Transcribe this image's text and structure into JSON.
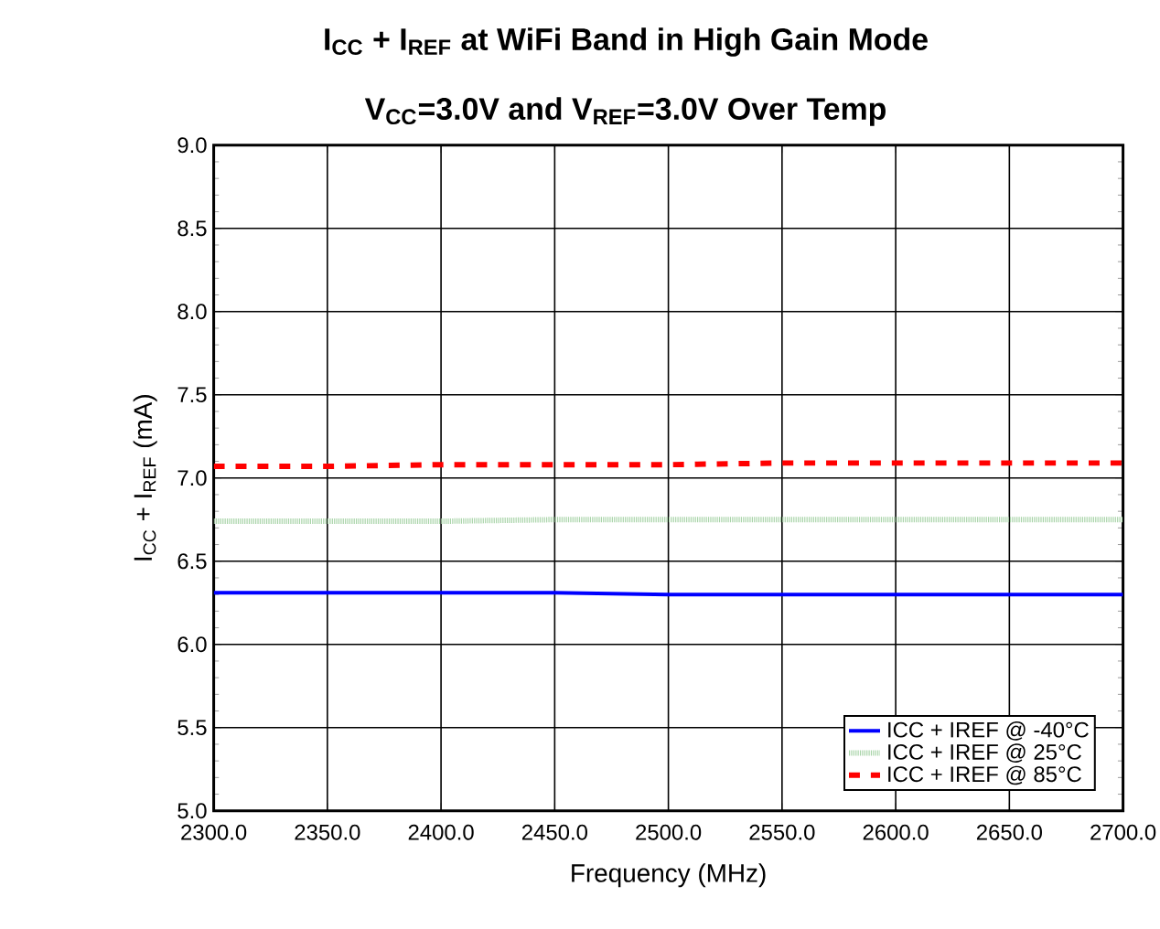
{
  "chart_data": {
    "type": "line",
    "title": "I$_{CC}$ + I$_{REF}$ at WiFi Band in High Gain Mode",
    "subtitle": "V$_{CC}$=3.0V and V$_{REF}$=3.0V Over Temp",
    "xlabel": "Frequency (MHz)",
    "ylabel": "I$_{CC}$ + I$_{REF}$ (mA)",
    "x": [
      2300,
      2350,
      2400,
      2450,
      2500,
      2550,
      2600,
      2650,
      2700
    ],
    "series": [
      {
        "name": "ICC + IREF @ -40°C",
        "color": "#0000ff",
        "line_style": "solid",
        "values": [
          6.31,
          6.31,
          6.31,
          6.31,
          6.3,
          6.3,
          6.3,
          6.3,
          6.3
        ]
      },
      {
        "name": "ICC + IREF @ 25°C",
        "color": "#a9d4a9",
        "line_style": "dotted",
        "values": [
          6.74,
          6.74,
          6.74,
          6.75,
          6.75,
          6.75,
          6.75,
          6.75,
          6.75
        ]
      },
      {
        "name": "ICC + IREF @ 85°C",
        "color": "#ff0000",
        "line_style": "dashed",
        "values": [
          7.07,
          7.07,
          7.08,
          7.08,
          7.08,
          7.09,
          7.09,
          7.09,
          7.09
        ]
      }
    ],
    "xlim": [
      2300,
      2700
    ],
    "ylim": [
      5.0,
      9.0
    ],
    "xticks": [
      {
        "value": 2300,
        "label": "2300.0"
      },
      {
        "value": 2350,
        "label": "2350.0"
      },
      {
        "value": 2400,
        "label": "2400.0"
      },
      {
        "value": 2450,
        "label": "2450.0"
      },
      {
        "value": 2500,
        "label": "2500.0"
      },
      {
        "value": 2550,
        "label": "2550.0"
      },
      {
        "value": 2600,
        "label": "2600.0"
      },
      {
        "value": 2650,
        "label": "2650.0"
      },
      {
        "value": 2700,
        "label": "2700.0"
      }
    ],
    "yticks": [
      {
        "value": 5.0,
        "label": "5.0"
      },
      {
        "value": 5.5,
        "label": "5.5"
      },
      {
        "value": 6.0,
        "label": "6.0"
      },
      {
        "value": 6.5,
        "label": "6.5"
      },
      {
        "value": 7.0,
        "label": "7.0"
      },
      {
        "value": 7.5,
        "label": "7.5"
      },
      {
        "value": 8.0,
        "label": "8.0"
      },
      {
        "value": 8.5,
        "label": "8.5"
      },
      {
        "value": 9.0,
        "label": "9.0"
      }
    ],
    "grid": true,
    "legend": "bottom right",
    "marker": "none"
  }
}
